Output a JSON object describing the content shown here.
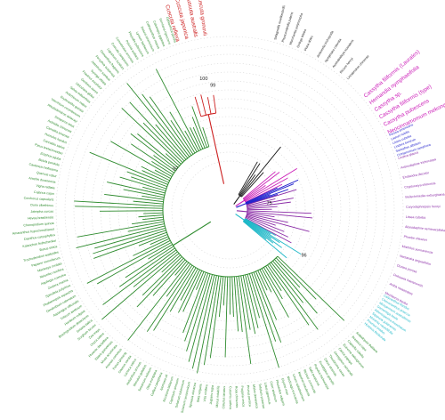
{
  "tree": {
    "root_label": "",
    "support_values": [
      {
        "text": "100",
        "clade": "red"
      },
      {
        "text": "99",
        "clade": "red"
      },
      {
        "text": "97",
        "clade": "green"
      },
      {
        "text": "75",
        "clade": "blue"
      },
      {
        "text": "96",
        "clade": "cyan"
      }
    ],
    "clades": [
      {
        "id": "red",
        "color": "#cc1f1f",
        "taxa": [
          "Cuscuta reflexa",
          "Cuscuta japonica",
          "Cuscuta australis",
          "Cuscuta gronovii"
        ]
      },
      {
        "id": "highlight",
        "color": "#cc1fb8",
        "taxa": [
          "Cassytha filiformis (Laurales)",
          "Hernandia nymphaeifolia",
          "Cassytha sp.",
          "Cassytha filiformis (type)",
          "Cassytha pubescens",
          "Neocinnamomum mekongense"
        ]
      },
      {
        "id": "blue",
        "color": "#2222cc",
        "taxa": [
          "Persea americana",
          "Laurus nobilis",
          "Litsea cubeba",
          "Lindera benzoin",
          "Sassafras albidum",
          "Cinnamomum camphora"
        ]
      },
      {
        "id": "purple",
        "color": "#8a2ba6",
        "taxa": [
          "Lindera glauca",
          "Actinodaphne trichocarpa",
          "Endiandra discolor",
          "Cryptocarya chinensis",
          "Beilschmiedia roxburghiana",
          "Caryodaphnopsis henryi",
          "Litsea cubeba",
          "Alseodaphne semecarpifolia",
          "Phoebe sheareri",
          "Machilus yunnanensis",
          "Nectandra angustifolia",
          "Ocotea porosa",
          "Dehaasia hainanensis",
          "Aniba rosaeodora",
          "Mezilaurus itauba"
        ]
      },
      {
        "id": "cyan",
        "color": "#1fb8c8",
        "taxa": [
          "Calycanthus floridus",
          "Chimonanthus praecox",
          "Idiospermum australiense",
          "Gomortega keule",
          "Atherosperma moschatum",
          "Siparuna guianensis",
          "Monimia rotundifolia",
          "Peumus boldus",
          "Hortonia floribunda"
        ]
      },
      {
        "id": "black",
        "color": "#1a1a1a",
        "taxa": [
          "Amborella trichopoda",
          "Nymphaea colorata",
          "Austrobaileya scandens",
          "Illicium henryi",
          "Liriodendron chinense"
        ]
      },
      {
        "id": "green",
        "color": "#2e8b2e",
        "taxa": [
          "Arabidopsis thaliana",
          "Brassica rapa",
          "Capsella rubella",
          "Eutrema salsugineum",
          "Carica papaya",
          "Gossypium raimondii",
          "Theobroma cacao",
          "Citrus sinensis",
          "Eucalyptus grandis",
          "Populus trichocarpa",
          "Salix purpurea",
          "Ricinus communis",
          "Manihot esculenta",
          "Linum usitatissimum",
          "Medicago truncatula",
          "Glycine max",
          "Phaseolus vulgaris",
          "Cicer arietinum",
          "Lotus japonicus",
          "Trifolium pratense",
          "Malus domestica",
          "Prunus persica",
          "Fragaria vesca",
          "Rosa chinensis",
          "Cucumis sativus",
          "Citrullus lanatus",
          "Morus notabilis",
          "Juglans regia",
          "Vitis vinifera",
          "Beta vulgaris",
          "Spinacia oleracea",
          "Solanum lycopersicum",
          "Solanum tuberosum",
          "Capsicum annuum",
          "Nicotiana tabacum",
          "Ipomoea nil",
          "Coffea canephora",
          "Olea europaea",
          "Sesamum indicum",
          "Mimulus guttatus",
          "Helianthus annuus",
          "Lactuca sativa",
          "Daucus carota",
          "Panax ginseng",
          "Ananas comosus",
          "Musa acuminata",
          "Elaeis guineensis",
          "Phoenix dactylifera",
          "Oryza sativa",
          "Zea mays",
          "Sorghum bicolor",
          "Setaria italica",
          "Brachypodium distachyon",
          "Hordeum vulgare",
          "Triticum aestivum",
          "Asparagus officinalis",
          "Dendrobium catenatum",
          "Phalaenopsis equestris",
          "Spirodela polyrhiza",
          "Zostera marina",
          "Aquilegia coerulea",
          "Nelumbo nucifera",
          "Macleaya cordata",
          "Papaver somniferum",
          "Trochodendron aralioides",
          "Buxus sinica",
          "Kalanchoe fedtschenkoi",
          "Dianthus caryophyllus",
          "Amaranthus hypochondriacus",
          "Chenopodium quinoa",
          "Hevea brasiliensis",
          "Jatropha curcas",
          "Durio zibethinus",
          "Corchorus capsularis",
          "Cajanus cajan",
          "Vigna radiata",
          "Arachis duranensis",
          "Quercus robur",
          "Castanea mollissima",
          "Betula pendula",
          "Ziziphus jujuba",
          "Pyrus bretschneideri",
          "Cannabis sativa",
          "Humulus lupulus",
          "Camellia sinensis",
          "Actinidia chinensis",
          "Diospyros lotus",
          "Rhododendron delavayi",
          "Vaccinium corymbosum",
          "Erythranthe guttata",
          "Antirrhinum majus",
          "Salvia miltiorrhiza",
          "Utricularia gibba",
          "Genlisea aurea",
          "Fraxinus excelsior",
          "Syringa oblata",
          "Jasminum sambac",
          "Forsythia suspensa",
          "Osmanthus fragrans",
          "Ligustrum lucidum",
          "Cuscuta campestris",
          "Convolvulus arvensis",
          "Petunia axillaris",
          "Physalis pubescens",
          "Lycium barbarum",
          "Datura stramonium",
          "Catharanthus roseus",
          "Calotropis gigantea",
          "Gentiana rigescens",
          "Ophiorrhiza pumila"
        ]
      }
    ],
    "outgroup_labels": [
      "Selaginella moellendorffii",
      "Physcomitrella patens",
      "Marchantia polymorpha",
      "Ginkgo biloba",
      "Picea abies"
    ]
  }
}
